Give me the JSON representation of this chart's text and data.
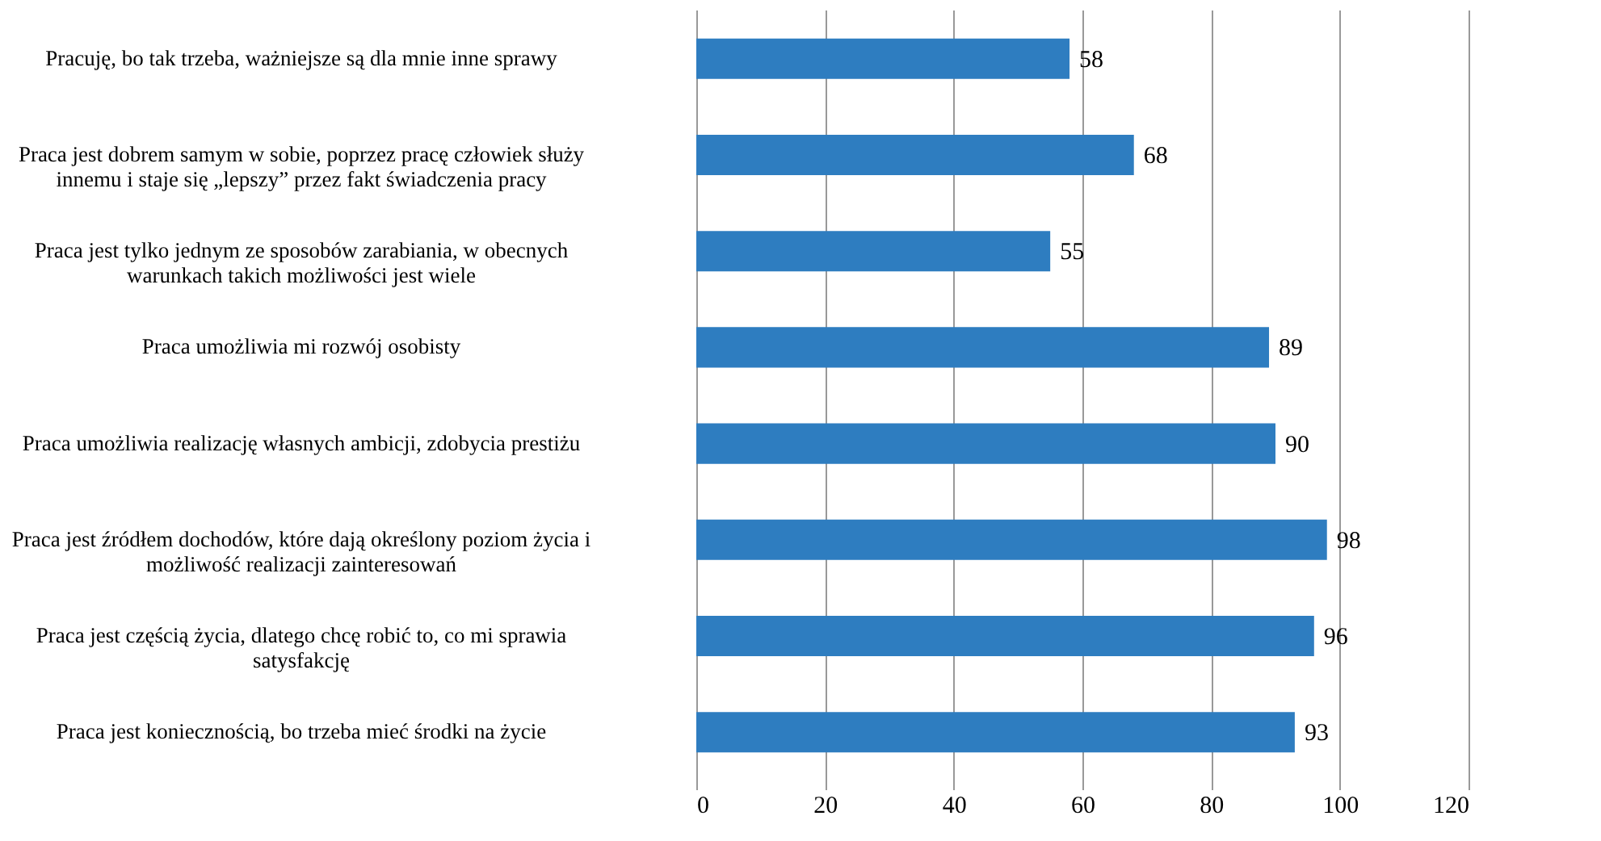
{
  "chart_data": {
    "type": "bar",
    "orientation": "horizontal",
    "categories": [
      "Pracuję, bo tak trzeba, ważniejsze są dla mnie inne sprawy",
      "Praca jest dobrem samym w sobie, poprzez pracę człowiek służy innemu i staje się „lepszy” przez fakt świadczenia pracy",
      "Praca jest tylko jednym ze sposobów zarabiania, w obecnych warunkach takich możliwości jest wiele",
      "Praca umożliwia mi rozwój osobisty",
      "Praca umożliwia realizację własnych ambicji, zdobycia prestiżu",
      "Praca jest źródłem dochodów, które dają określony poziom życia i możliwość realizacji zainteresowań",
      "Praca jest częścią życia, dlatego chcę robić to, co mi sprawia satysfakcję",
      "Praca jest koniecznością, bo trzeba mieć środki na życie"
    ],
    "values": [
      58,
      68,
      55,
      89,
      90,
      98,
      96,
      93
    ],
    "color": "#2e7dc0",
    "xlim": [
      0,
      120
    ],
    "xticks": [
      0,
      20,
      40,
      60,
      80,
      100,
      120
    ],
    "grid": "x",
    "data_labels": true
  }
}
